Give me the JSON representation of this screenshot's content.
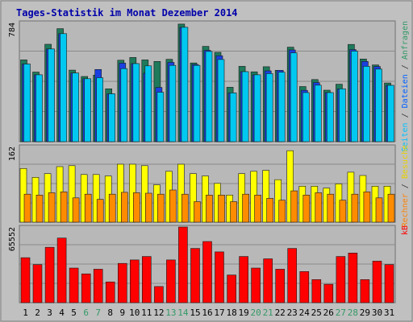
{
  "chart_data": {
    "type": "bar",
    "title": "Tages-Statistik im Monat Dezember 2014",
    "days": [
      "1",
      "2",
      "3",
      "4",
      "5",
      "6",
      "7",
      "8",
      "9",
      "10",
      "11",
      "12",
      "13",
      "14",
      "15",
      "16",
      "17",
      "18",
      "19",
      "20",
      "21",
      "22",
      "23",
      "24",
      "25",
      "26",
      "27",
      "28",
      "29",
      "30",
      "31"
    ],
    "weekend_days": [
      "6",
      "7",
      "13",
      "14",
      "20",
      "21",
      "27",
      "28"
    ],
    "panels": [
      {
        "name": "top",
        "ymax_label": "784",
        "ymax": 784,
        "right_legend": [
          {
            "text": "Seiten",
            "color": "#00bfff"
          },
          {
            "text": " / ",
            "color": "#333333"
          },
          {
            "text": "Dateien",
            "color": "#0060ff"
          },
          {
            "text": " / ",
            "color": "#333333"
          },
          {
            "text": "Anfragen",
            "color": "#339966"
          }
        ],
        "series": [
          {
            "name": "Anfragen",
            "color": "#1e7a5a",
            "values": [
              538,
              458,
              641,
              744,
              471,
              429,
              438,
              348,
              536,
              554,
              538,
              528,
              542,
              774,
              518,
              627,
              588,
              358,
              496,
              460,
              493,
              470,
              622,
              363,
              409,
              339,
              378,
              640,
              544,
              505,
              386
            ]
          },
          {
            "name": "Dateien",
            "color": "#1a40e0",
            "values": [
              511,
              440,
              610,
              711,
              452,
              414,
              475,
              315,
              517,
              514,
              451,
              357,
              522,
              753,
              508,
              601,
              566,
              321,
              461,
              440,
              466,
              470,
              604,
              338,
              389,
              323,
              348,
              606,
              528,
              495,
              371
            ]
          },
          {
            "name": "Seiten",
            "color": "#00c8f0",
            "values": [
              511,
              440,
              610,
              711,
              452,
              414,
              421,
              315,
              481,
              514,
              499,
              325,
              502,
              753,
              502,
              594,
              541,
              321,
              461,
              440,
              448,
              457,
              585,
              323,
              372,
              323,
              348,
              596,
              496,
              478,
              371
            ]
          }
        ]
      },
      {
        "name": "middle",
        "ymax_label": "162",
        "ymax": 162,
        "right_legend": [
          {
            "text": "Rechner",
            "color": "#ff8000"
          },
          {
            "text": " / ",
            "color": "#333333"
          },
          {
            "text": "Besuche",
            "color": "#e8d000"
          }
        ],
        "series": [
          {
            "name": "Besuche",
            "color": "#ffff00",
            "values": [
              115,
              96,
              104,
              119,
              121,
              102,
              102,
              99,
              124,
              124,
              121,
              80,
              109,
              124,
              104,
              99,
              83,
              58,
              104,
              109,
              111,
              91,
              153,
              77,
              77,
              73,
              82,
              107,
              100,
              77,
              77
            ]
          },
          {
            "name": "Rechner",
            "color": "#ff8c00",
            "values": [
              60,
              58,
              63,
              65,
              52,
              60,
              49,
              60,
              64,
              63,
              62,
              60,
              69,
              60,
              44,
              58,
              58,
              44,
              60,
              58,
              51,
              47,
              67,
              58,
              63,
              60,
              47,
              60,
              65,
              52,
              60
            ]
          }
        ]
      },
      {
        "name": "bottom",
        "ymax_label": "65552",
        "ymax": 65552,
        "right_legend": [
          {
            "text": "kB",
            "color": "#ff0000"
          }
        ],
        "series": [
          {
            "name": "kB",
            "color": "#ff0000",
            "values": [
              39000,
              33000,
              48000,
              56000,
              30000,
              25000,
              29000,
              18000,
              34000,
              37000,
              40000,
              14000,
              37000,
              65552,
              47000,
              53000,
              44000,
              24000,
              40000,
              30000,
              38000,
              29000,
              47000,
              27000,
              20000,
              16000,
              40000,
              43000,
              20000,
              36000,
              33000
            ]
          }
        ]
      }
    ]
  }
}
